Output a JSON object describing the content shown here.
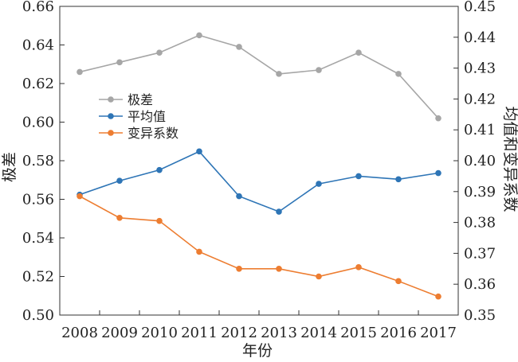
{
  "chart_data": {
    "type": "line",
    "xlabel": "年份",
    "ylabel_left": "极差",
    "ylabel_right": "均值和变异系数",
    "categories": [
      "2008",
      "2009",
      "2010",
      "2011",
      "2012",
      "2013",
      "2014",
      "2015",
      "2016",
      "2017"
    ],
    "ylim_left": [
      0.5,
      0.66
    ],
    "yticks_left": [
      "0.50",
      "0.52",
      "0.54",
      "0.56",
      "0.58",
      "0.60",
      "0.62",
      "0.64",
      "0.66"
    ],
    "ylim_right": [
      0.35,
      0.45
    ],
    "yticks_right": [
      "0.35",
      "0.36",
      "0.37",
      "0.38",
      "0.39",
      "0.40",
      "0.41",
      "0.42",
      "0.43",
      "0.44",
      "0.45"
    ],
    "grid": false,
    "legend_position": "left",
    "series": [
      {
        "name": "极差",
        "axis": "left",
        "color": "#a6a6a6",
        "values": [
          0.626,
          0.631,
          0.636,
          0.645,
          0.639,
          0.625,
          0.627,
          0.636,
          0.625,
          0.602
        ]
      },
      {
        "name": "平均值",
        "axis": "right",
        "color": "#2e75b6",
        "values": [
          0.389,
          0.3935,
          0.397,
          0.403,
          0.3885,
          0.3835,
          0.3925,
          0.395,
          0.394,
          0.396
        ]
      },
      {
        "name": "变异系数",
        "axis": "right",
        "color": "#ed7d31",
        "values": [
          0.3885,
          0.3815,
          0.3805,
          0.3705,
          0.365,
          0.365,
          0.3625,
          0.3655,
          0.361,
          0.356
        ]
      }
    ]
  }
}
